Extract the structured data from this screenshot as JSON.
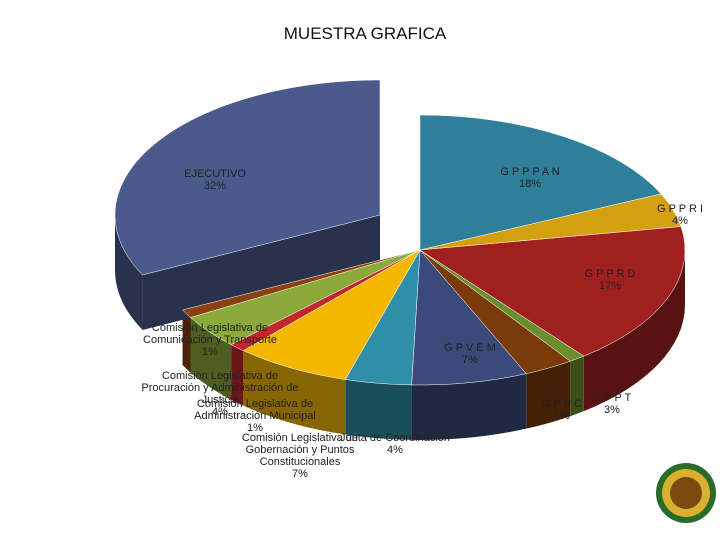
{
  "chart_data": {
    "type": "pie",
    "title": "MUESTRA GRAFICA",
    "categories": [
      "G P P P A N",
      "G P P R I",
      "G P P R D",
      "G P P C",
      "G P P T",
      "G P V E M",
      "Junta de Coordinación",
      "Comisión Legislativa de Gobernación y Puntos Constitucionales",
      "Comisión Legislativa de Administración Municipal",
      "Comisión Legislativa de Procuración y Administración de Justicia",
      "Comisión Legislativa de Comunicación y Transporte",
      "EJECUTIVO"
    ],
    "values": [
      18,
      4,
      17,
      1,
      3,
      7,
      4,
      7,
      1,
      4,
      1,
      32
    ],
    "value_labels": [
      "18%",
      "4%",
      "17%",
      "1%",
      "3%",
      "7%",
      "4%",
      "7%",
      "1%",
      "4%",
      "1%",
      "32%"
    ],
    "colors": [
      "#2f7e9a",
      "#d4a010",
      "#a0201f",
      "#6a8f2a",
      "#7a3a0a",
      "#3a4a7a",
      "#2f8ea8",
      "#f5b800",
      "#c0262a",
      "#8aaa3a",
      "#8a4010",
      "#4a5a8c"
    ]
  }
}
